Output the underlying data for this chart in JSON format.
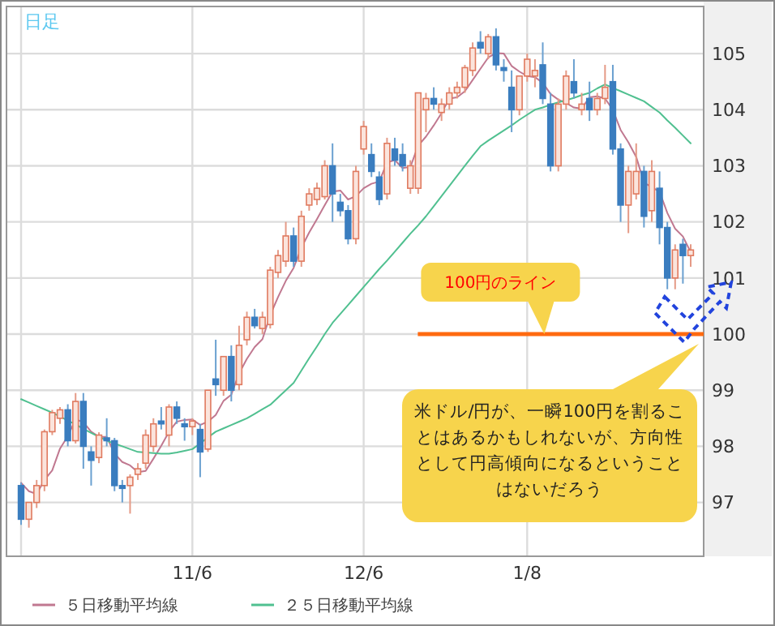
{
  "chart_data": {
    "type": "candlestick",
    "title": "日足",
    "categories": [
      null,
      null,
      null,
      null,
      null,
      null,
      null,
      null,
      null,
      null,
      null,
      null,
      null,
      null,
      null,
      null,
      null,
      null,
      null,
      null,
      null,
      null,
      "11/6",
      null,
      null,
      null,
      null,
      null,
      null,
      null,
      null,
      null,
      null,
      null,
      null,
      null,
      null,
      null,
      null,
      null,
      null,
      null,
      null,
      null,
      "12/6",
      null,
      null,
      null,
      null,
      null,
      null,
      null,
      null,
      null,
      null,
      null,
      null,
      null,
      null,
      null,
      null,
      null,
      null,
      null,
      null,
      "1/8",
      null,
      null,
      null,
      null,
      null,
      null,
      null,
      null,
      null,
      null,
      null,
      null,
      null,
      null,
      null,
      null,
      null,
      null,
      null,
      null,
      null
    ],
    "ohlc": [
      [
        97.3,
        97.35,
        96.6,
        96.7
      ],
      [
        96.7,
        97.0,
        96.55,
        97.0
      ],
      [
        97.0,
        97.4,
        96.9,
        97.3
      ],
      [
        97.3,
        98.3,
        97.2,
        98.26
      ],
      [
        98.26,
        98.65,
        98.2,
        98.6
      ],
      [
        98.5,
        98.7,
        98.4,
        98.65
      ],
      [
        98.65,
        98.75,
        98.0,
        98.1
      ],
      [
        98.1,
        98.95,
        98.05,
        98.8
      ],
      [
        98.8,
        98.95,
        97.6,
        98.0
      ],
      [
        97.9,
        98.0,
        97.3,
        97.75
      ],
      [
        97.8,
        98.25,
        97.7,
        98.2
      ],
      [
        98.15,
        98.5,
        98.0,
        98.1
      ],
      [
        98.1,
        98.15,
        97.2,
        97.3
      ],
      [
        97.3,
        97.4,
        97.0,
        97.25
      ],
      [
        97.3,
        97.5,
        96.8,
        97.45
      ],
      [
        97.5,
        97.7,
        97.4,
        97.6
      ],
      [
        97.7,
        98.3,
        97.6,
        98.2
      ],
      [
        98.0,
        98.5,
        97.9,
        98.4
      ],
      [
        98.45,
        98.7,
        98.3,
        98.4
      ],
      [
        98.2,
        98.75,
        98.0,
        98.7
      ],
      [
        98.7,
        98.8,
        98.4,
        98.5
      ],
      [
        98.4,
        98.5,
        98.1,
        98.35
      ],
      [
        98.35,
        98.5,
        98.2,
        98.45
      ],
      [
        98.3,
        98.4,
        97.45,
        97.9
      ],
      [
        97.95,
        99.0,
        97.9,
        99.0
      ],
      [
        99.2,
        99.9,
        98.9,
        99.1
      ],
      [
        99.0,
        99.6,
        98.9,
        99.6
      ],
      [
        99.6,
        99.8,
        98.8,
        99.0
      ],
      [
        99.1,
        100.15,
        99.0,
        99.8
      ],
      [
        99.9,
        100.4,
        99.8,
        100.3
      ],
      [
        100.3,
        100.45,
        100.1,
        100.15
      ],
      [
        100.1,
        100.4,
        100.0,
        100.3
      ],
      [
        100.17,
        101.2,
        100.1,
        101.14
      ],
      [
        101.1,
        101.5,
        101.0,
        101.4
      ],
      [
        101.3,
        102.0,
        101.2,
        101.75
      ],
      [
        101.75,
        101.9,
        101.2,
        101.3
      ],
      [
        101.3,
        102.2,
        101.2,
        102.1
      ],
      [
        102.3,
        102.6,
        102.2,
        102.5
      ],
      [
        102.4,
        102.7,
        102.3,
        102.6
      ],
      [
        102.45,
        103.1,
        102.4,
        103.0
      ],
      [
        103.0,
        103.4,
        102.0,
        102.5
      ],
      [
        102.35,
        102.5,
        102.1,
        102.2
      ],
      [
        102.2,
        102.3,
        101.6,
        101.7
      ],
      [
        101.7,
        103.0,
        101.6,
        102.9
      ],
      [
        103.3,
        103.8,
        103.2,
        103.7
      ],
      [
        103.2,
        103.4,
        102.8,
        102.9
      ],
      [
        102.8,
        102.9,
        102.3,
        102.4
      ],
      [
        102.5,
        103.5,
        102.4,
        103.4
      ],
      [
        103.3,
        103.5,
        103.0,
        103.1
      ],
      [
        103.2,
        103.4,
        102.9,
        103.0
      ],
      [
        102.6,
        103.1,
        102.5,
        103.0
      ],
      [
        102.6,
        104.3,
        102.5,
        104.3
      ],
      [
        104.0,
        104.3,
        103.6,
        104.2
      ],
      [
        104.2,
        104.4,
        104.0,
        104.1
      ],
      [
        103.95,
        104.2,
        103.8,
        104.1
      ],
      [
        104.1,
        104.4,
        104.0,
        104.3
      ],
      [
        104.3,
        104.5,
        104.2,
        104.4
      ],
      [
        104.4,
        104.8,
        104.3,
        104.75
      ],
      [
        104.7,
        105.2,
        104.6,
        105.1
      ],
      [
        105.2,
        105.4,
        105.0,
        105.1
      ],
      [
        105.0,
        105.35,
        104.9,
        105.3
      ],
      [
        105.3,
        105.45,
        104.7,
        104.8
      ],
      [
        104.75,
        104.9,
        104.5,
        104.7
      ],
      [
        104.4,
        104.7,
        103.6,
        104.0
      ],
      [
        104.0,
        104.6,
        103.9,
        104.6
      ],
      [
        104.6,
        105.0,
        104.5,
        104.9
      ],
      [
        104.6,
        104.9,
        104.4,
        104.7
      ],
      [
        104.8,
        105.2,
        104.1,
        104.2
      ],
      [
        104.1,
        104.3,
        102.9,
        103.0
      ],
      [
        103.0,
        104.2,
        102.9,
        104.1
      ],
      [
        104.1,
        104.7,
        104.0,
        104.6
      ],
      [
        104.5,
        104.9,
        104.2,
        104.3
      ],
      [
        104.0,
        104.3,
        103.9,
        104.1
      ],
      [
        104.2,
        104.5,
        103.8,
        104.0
      ],
      [
        104.0,
        104.3,
        103.9,
        104.2
      ],
      [
        104.2,
        104.8,
        104.1,
        104.4
      ],
      [
        104.5,
        104.8,
        103.2,
        103.3
      ],
      [
        103.3,
        103.4,
        102.0,
        102.3
      ],
      [
        102.3,
        103.0,
        101.8,
        102.9
      ],
      [
        102.5,
        103.4,
        102.4,
        102.9
      ],
      [
        102.9,
        103.0,
        101.9,
        102.1
      ],
      [
        102.2,
        103.1,
        102.0,
        102.9
      ],
      [
        102.6,
        102.9,
        101.6,
        101.9
      ],
      [
        101.9,
        102.0,
        100.8,
        101.0
      ],
      [
        101.0,
        101.6,
        100.8,
        101.5
      ],
      [
        101.6,
        101.7,
        100.9,
        101.4
      ],
      [
        101.4,
        101.6,
        101.2,
        101.5
      ]
    ],
    "series": [
      {
        "name": "５日移動平均線",
        "type": "line",
        "color": "#c07890",
        "values": [
          97.35,
          97.2,
          97.15,
          97.4,
          97.57,
          97.96,
          98.18,
          98.48,
          98.43,
          98.26,
          98.17,
          98.17,
          97.87,
          97.72,
          97.66,
          97.54,
          97.56,
          97.78,
          98.01,
          98.26,
          98.44,
          98.47,
          98.48,
          98.38,
          98.44,
          98.56,
          98.81,
          98.92,
          99.3,
          99.56,
          99.77,
          99.91,
          100.34,
          100.66,
          100.95,
          101.18,
          101.54,
          101.81,
          102.05,
          102.3,
          102.54,
          102.56,
          102.4,
          102.46,
          102.6,
          102.68,
          102.72,
          103.06,
          103.1,
          102.96,
          102.98,
          103.36,
          103.52,
          103.72,
          103.94,
          104.2,
          104.22,
          104.33,
          104.53,
          104.73,
          104.93,
          105.01,
          105.0,
          104.78,
          104.68,
          104.6,
          104.58,
          104.48,
          104.28,
          104.18,
          104.12,
          104.04,
          104.02,
          104.22,
          104.24,
          104.2,
          104.0,
          103.64,
          103.42,
          103.16,
          102.7,
          102.62,
          102.54,
          102.16,
          101.88,
          101.74,
          101.46
        ]
      },
      {
        "name": "２５日移動平均線",
        "type": "line",
        "color": "#50c090",
        "values": [
          98.84,
          98.78,
          98.72,
          98.66,
          98.6,
          98.53,
          98.46,
          98.39,
          98.31,
          98.24,
          98.17,
          98.1,
          98.05,
          98.0,
          97.95,
          97.9,
          97.89,
          97.88,
          97.87,
          97.87,
          97.89,
          97.92,
          97.95,
          98.05,
          98.16,
          98.26,
          98.32,
          98.38,
          98.44,
          98.5,
          98.58,
          98.66,
          98.74,
          98.87,
          99.0,
          99.13,
          99.35,
          99.57,
          99.78,
          100.0,
          100.2,
          100.36,
          100.52,
          100.68,
          100.84,
          101.0,
          101.16,
          101.31,
          101.47,
          101.63,
          101.79,
          101.94,
          102.1,
          102.28,
          102.46,
          102.64,
          102.82,
          103.0,
          103.18,
          103.35,
          103.45,
          103.54,
          103.63,
          103.72,
          103.82,
          103.91,
          104.0,
          104.04,
          104.09,
          104.13,
          104.17,
          104.21,
          104.26,
          104.3,
          104.38,
          104.45,
          104.39,
          104.33,
          104.27,
          104.21,
          104.15,
          104.05,
          103.95,
          103.81,
          103.68,
          103.54,
          103.4
        ]
      }
    ],
    "ylim": [
      96.04,
      105.84
    ],
    "yticks": [
      97,
      98,
      99,
      100,
      101,
      102,
      103,
      104,
      105
    ],
    "grid": true,
    "legend": "bottom",
    "ref_lines": [
      {
        "axis": "y",
        "value": 100,
        "label": "100円のライン",
        "color": "#ff6a10"
      }
    ],
    "annotations": [
      "米ドル/円が、一瞬100円を割ることはあるかもしれないが、方向性として円高傾向になるということはないだろう"
    ]
  }
}
